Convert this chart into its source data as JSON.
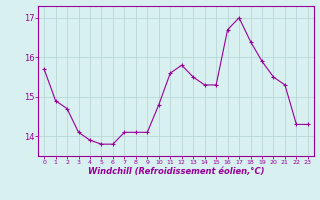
{
  "x": [
    0,
    1,
    2,
    3,
    4,
    5,
    6,
    7,
    8,
    9,
    10,
    11,
    12,
    13,
    14,
    15,
    16,
    17,
    18,
    19,
    20,
    21,
    22,
    23
  ],
  "y": [
    15.7,
    14.9,
    14.7,
    14.1,
    13.9,
    13.8,
    13.8,
    14.1,
    14.1,
    14.1,
    14.8,
    15.6,
    15.8,
    15.5,
    15.3,
    15.3,
    16.7,
    17.0,
    16.4,
    15.9,
    15.5,
    15.3,
    14.3,
    14.3
  ],
  "line_color": "#990099",
  "marker": "+",
  "marker_size": 3,
  "bg_color": "#d8f0f0",
  "grid_color": "#b8d8d8",
  "xlabel": "Windchill (Refroidissement éolien,°C)",
  "xlabel_color": "#990099",
  "tick_color": "#990099",
  "ylim": [
    13.5,
    17.3
  ],
  "yticks": [
    14,
    15,
    16,
    17
  ],
  "xticks": [
    0,
    1,
    2,
    3,
    4,
    5,
    6,
    7,
    8,
    9,
    10,
    11,
    12,
    13,
    14,
    15,
    16,
    17,
    18,
    19,
    20,
    21,
    22,
    23
  ],
  "spine_color": "#990099"
}
